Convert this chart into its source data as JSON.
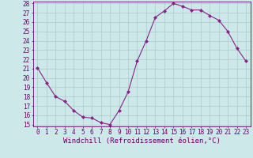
{
  "x": [
    0,
    1,
    2,
    3,
    4,
    5,
    6,
    7,
    8,
    9,
    10,
    11,
    12,
    13,
    14,
    15,
    16,
    17,
    18,
    19,
    20,
    21,
    22,
    23
  ],
  "y": [
    21.1,
    19.5,
    18.0,
    17.5,
    16.5,
    15.8,
    15.7,
    15.2,
    15.0,
    16.5,
    18.5,
    21.8,
    24.0,
    26.5,
    27.2,
    28.0,
    27.7,
    27.3,
    27.3,
    26.7,
    26.2,
    25.0,
    23.2,
    21.8
  ],
  "ylim": [
    15,
    28
  ],
  "yticks": [
    15,
    16,
    17,
    18,
    19,
    20,
    21,
    22,
    23,
    24,
    25,
    26,
    27,
    28
  ],
  "xticks": [
    0,
    1,
    2,
    3,
    4,
    5,
    6,
    7,
    8,
    9,
    10,
    11,
    12,
    13,
    14,
    15,
    16,
    17,
    18,
    19,
    20,
    21,
    22,
    23
  ],
  "xlabel": "Windchill (Refroidissement éolien,°C)",
  "line_color": "#882288",
  "marker": "D",
  "marker_size": 2.0,
  "bg_color": "#cce8e8",
  "grid_color": "#aacccc",
  "font_color": "#660066",
  "tick_fontsize": 5.5,
  "xlabel_fontsize": 6.5
}
